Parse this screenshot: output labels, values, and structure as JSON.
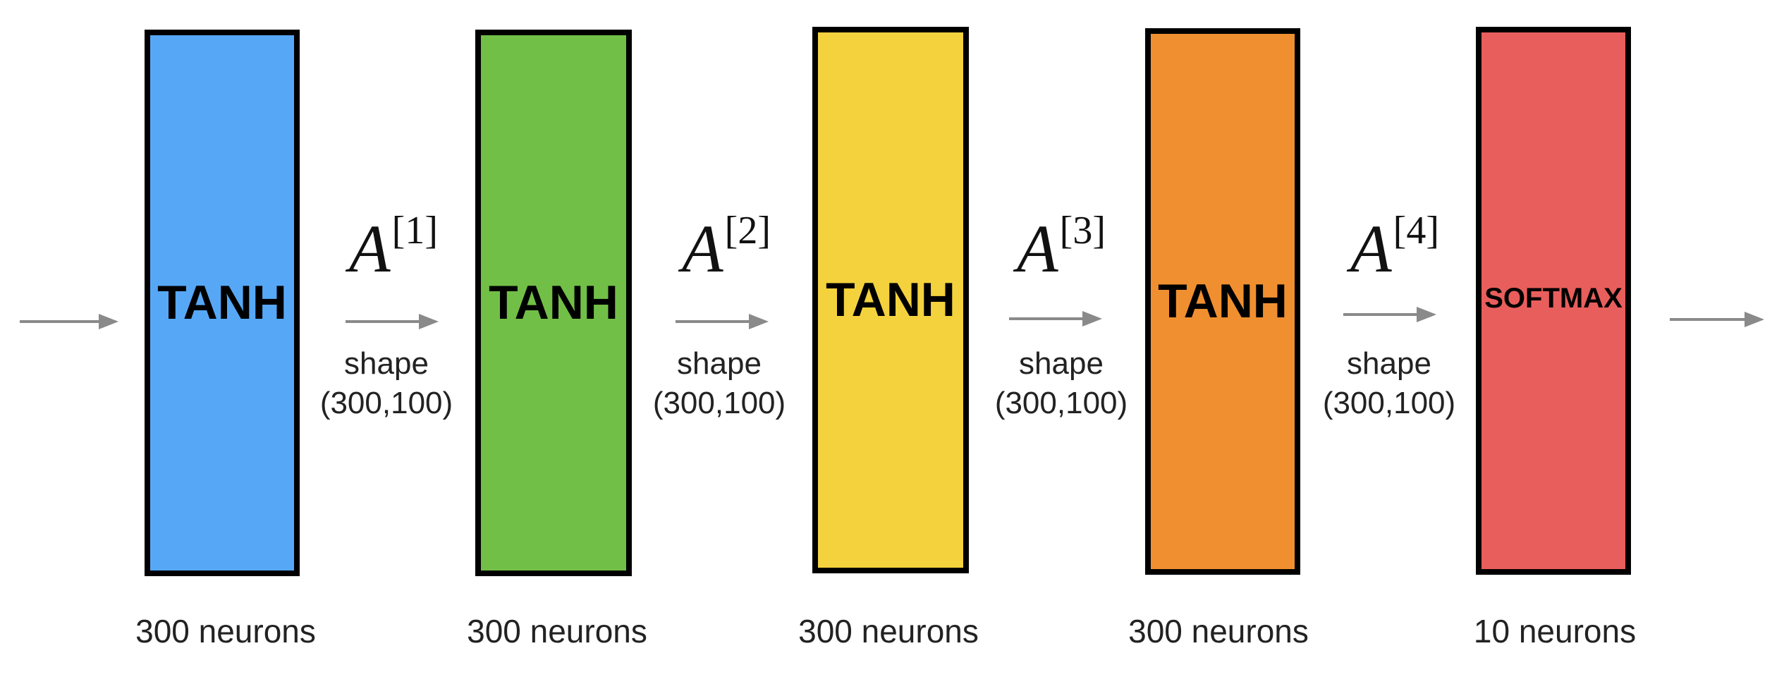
{
  "diagram": {
    "layers": [
      {
        "name": "TANH",
        "neurons": "300 neurons",
        "color": "#56A8F7"
      },
      {
        "name": "TANH",
        "neurons": "300 neurons",
        "color": "#72BF47"
      },
      {
        "name": "TANH",
        "neurons": "300 neurons",
        "color": "#F4D23E"
      },
      {
        "name": "TANH",
        "neurons": "300 neurons",
        "color": "#F08F30"
      },
      {
        "name": "SOFTMAX",
        "neurons": "10 neurons",
        "color": "#E85E5C"
      }
    ],
    "connections": [
      {
        "letter": "A",
        "sup": "[1]",
        "shape_word": "shape",
        "shape_value": "(300,100)"
      },
      {
        "letter": "A",
        "sup": "[2]",
        "shape_word": "shape",
        "shape_value": "(300,100)"
      },
      {
        "letter": "A",
        "sup": "[3]",
        "shape_word": "shape",
        "shape_value": "(300,100)"
      },
      {
        "letter": "A",
        "sup": "[4]",
        "shape_word": "shape",
        "shape_value": "(300,100)"
      }
    ],
    "arrow_color": "#8A8A8A",
    "border_color": "#000000"
  }
}
